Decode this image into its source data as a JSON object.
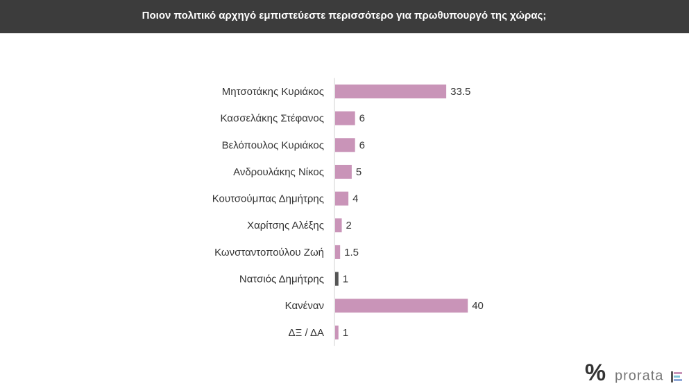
{
  "chart_data": {
    "type": "hbar",
    "title": "Ποιον πολιτικό αρχηγό εμπιστεύεστε περισσότερο για πρωθυπουργό της χώρας;",
    "categories": [
      "Μητσοτάκης Κυριάκος",
      "Κασσελάκης Στέφανος",
      "Βελόπουλος Κυριάκος",
      "Ανδρουλάκης Νίκος",
      "Κουτσούμπας Δημήτρης",
      "Χαρίτσης Αλέξης",
      "Κωνσταντοπούλου Ζωή",
      "Νατσιός Δημήτρης",
      "Κανέναν",
      "ΔΞ / ΔΑ"
    ],
    "values": [
      33.5,
      6,
      6,
      5,
      4,
      2,
      1.5,
      1,
      40,
      1
    ],
    "colors": [
      "#c994b8",
      "#c994b8",
      "#c994b8",
      "#c994b8",
      "#c994b8",
      "#c994b8",
      "#c994b8",
      "#555555",
      "#c994b8",
      "#c994b8"
    ]
  },
  "brand": "prorata"
}
